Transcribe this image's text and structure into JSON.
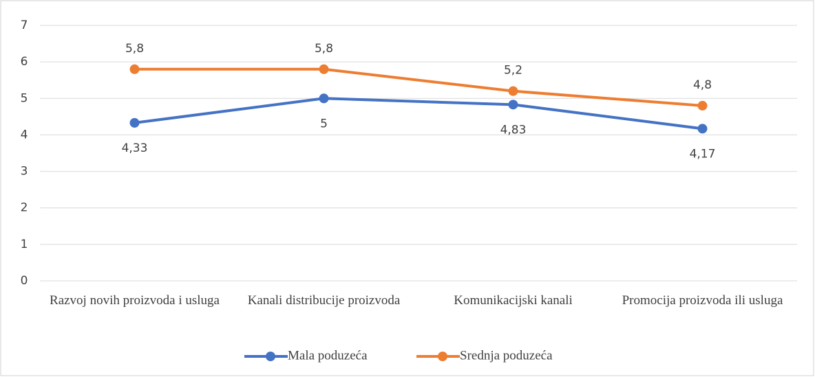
{
  "chart_data": {
    "type": "line",
    "categories": [
      "Razvoj novih proizvoda i usluga",
      "Kanali distribucije proizvoda",
      "Komunikacijski kanali",
      "Promocija proizvoda ili usluga"
    ],
    "series": [
      {
        "name": "Mala poduzeća",
        "color": "#4472c4",
        "values": [
          4.33,
          5,
          4.83,
          4.17
        ],
        "value_labels": [
          "4,33",
          "5",
          "4,83",
          "4,17"
        ]
      },
      {
        "name": "Srednja poduzeća",
        "color": "#ed7d31",
        "values": [
          5.8,
          5.8,
          5.2,
          4.8
        ],
        "value_labels": [
          "5,8",
          "5,8",
          "5,2",
          "4,8"
        ]
      }
    ],
    "ylim": [
      0,
      7
    ],
    "yticks": [
      0,
      1,
      2,
      3,
      4,
      5,
      6,
      7
    ],
    "grid": true,
    "legend": "bottom"
  }
}
